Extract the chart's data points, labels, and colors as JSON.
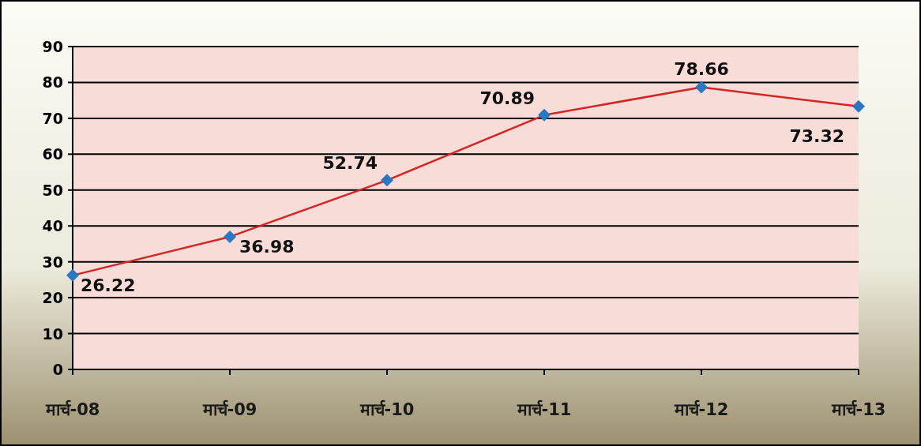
{
  "chart_data": {
    "type": "line",
    "categories": [
      "मार्च-08",
      "मार्च-09",
      "मार्च-10",
      "मार्च-11",
      "मार्च-12",
      "मार्च-13"
    ],
    "series": [
      {
        "color": "#d42424",
        "colors": [
          "#2a78c4",
          "#2a78c4",
          "#2a78c4",
          "#2a78c4",
          "#2a78c4",
          "#2a78c4"
        ],
        "values": [
          26.22,
          36.98,
          52.74,
          70.89,
          78.66,
          73.32
        ]
      }
    ],
    "ylim": [
      0,
      90
    ],
    "yticks": [
      0,
      10,
      20,
      30,
      40,
      50,
      60,
      70,
      80,
      90
    ],
    "grid": "y",
    "marker": "diamond",
    "line_style": "solid",
    "data_labels": true
  }
}
